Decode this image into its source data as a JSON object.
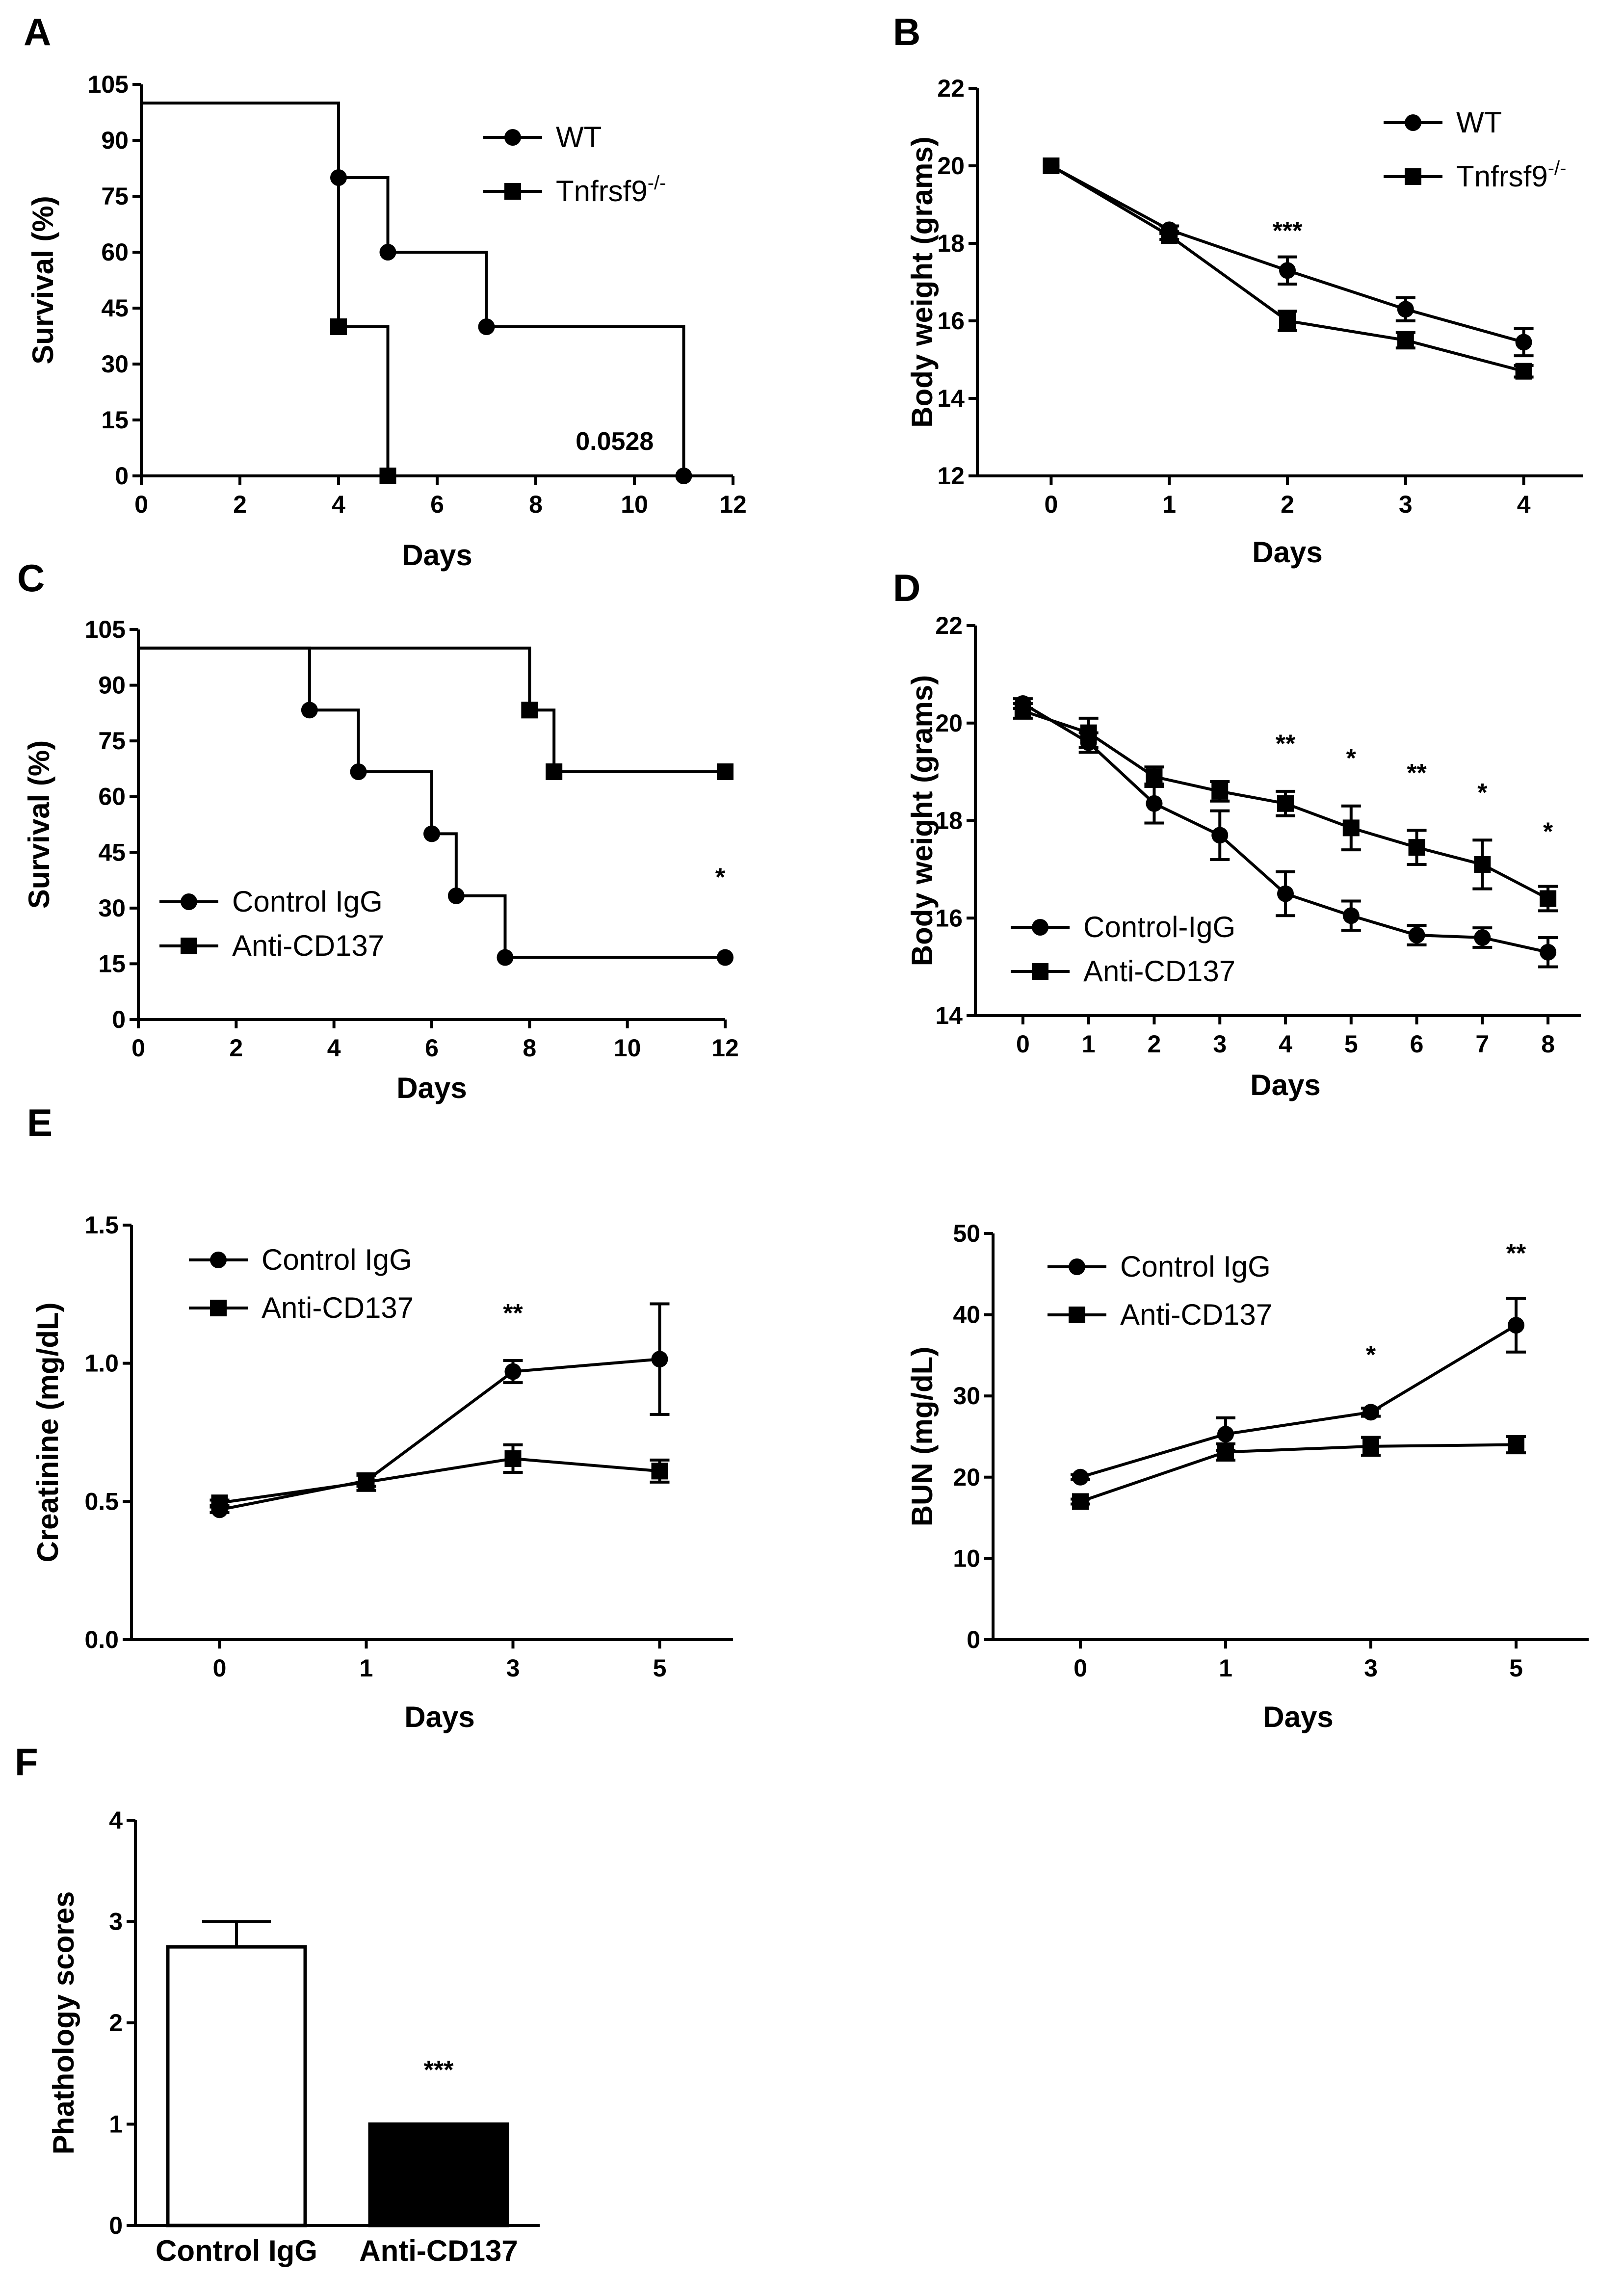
{
  "chart_data": [
    {
      "panel": "A",
      "type": "line",
      "subtype": "survival-step",
      "title": "",
      "xlabel": "Days",
      "ylabel": "Survival (%)",
      "xlim": [
        0,
        12
      ],
      "ylim": [
        0,
        105
      ],
      "xticks": [
        0,
        2,
        4,
        6,
        8,
        10,
        12
      ],
      "yticks": [
        0,
        15,
        30,
        45,
        60,
        75,
        90,
        105
      ],
      "grid": false,
      "legend_position": "top-right",
      "annotations": [
        {
          "text": "0.0528",
          "x": 9.6,
          "y": 7
        }
      ],
      "series": [
        {
          "name": "WT",
          "superscript": "",
          "marker": "circle",
          "x": [
            0,
            4,
            5,
            7,
            11
          ],
          "y": [
            100,
            80,
            60,
            40,
            0
          ],
          "marked_x": [
            4,
            5,
            7,
            11
          ],
          "marked_y": [
            80,
            60,
            40,
            0
          ]
        },
        {
          "name": "Tnfrsf9",
          "superscript": "-/-",
          "marker": "square",
          "x": [
            0,
            4,
            5
          ],
          "y": [
            100,
            40,
            0
          ],
          "marked_x": [
            4,
            5
          ],
          "marked_y": [
            40,
            0
          ]
        }
      ]
    },
    {
      "panel": "B",
      "type": "line",
      "title": "",
      "xlabel": "Days",
      "ylabel": "Body weight (grams)",
      "xlim": [
        -0.5,
        4.5
      ],
      "ylim": [
        12,
        22
      ],
      "xticks": [
        0,
        1,
        2,
        3,
        4
      ],
      "yticks": [
        12,
        14,
        16,
        18,
        20,
        22
      ],
      "grid": false,
      "legend_position": "top-right",
      "annotations": [
        {
          "text": "***",
          "x": 2,
          "y": 18.1
        }
      ],
      "series": [
        {
          "name": "WT",
          "superscript": "",
          "marker": "circle",
          "x": [
            0,
            1,
            2,
            3,
            4
          ],
          "y": [
            20,
            18.35,
            17.3,
            16.3,
            15.45
          ],
          "err": [
            0,
            0.1,
            0.35,
            0.3,
            0.35
          ]
        },
        {
          "name": "Tnfrsf9",
          "superscript": "-/-",
          "marker": "square",
          "x": [
            0,
            1,
            2,
            3,
            4
          ],
          "y": [
            20,
            18.2,
            16,
            15.5,
            14.7
          ],
          "err": [
            0,
            0.1,
            0.25,
            0.2,
            0.15
          ]
        }
      ]
    },
    {
      "panel": "C",
      "type": "line",
      "subtype": "survival-step",
      "title": "",
      "xlabel": "Days",
      "ylabel": "Survival (%)",
      "xlim": [
        0,
        12
      ],
      "ylim": [
        0,
        105
      ],
      "xticks": [
        0,
        2,
        4,
        6,
        8,
        10,
        12
      ],
      "yticks": [
        0,
        15,
        30,
        45,
        60,
        75,
        90,
        105
      ],
      "grid": false,
      "legend_position": "bottom-left",
      "annotations": [
        {
          "text": "*",
          "x": 11.9,
          "y": 36
        }
      ],
      "series": [
        {
          "name": "Control IgG",
          "superscript": "",
          "marker": "circle",
          "x": [
            0,
            3.5,
            4.5,
            6,
            6.5,
            7.5,
            12
          ],
          "y": [
            100,
            83.3,
            66.7,
            50,
            33.3,
            16.7,
            16.7
          ],
          "marked_x": [
            3.5,
            4.5,
            6,
            6.5,
            7.5,
            12
          ],
          "marked_y": [
            83.3,
            66.7,
            50,
            33.3,
            16.7,
            16.7
          ]
        },
        {
          "name": "Anti-CD137",
          "superscript": "",
          "marker": "square",
          "x": [
            0,
            8,
            8.5,
            12
          ],
          "y": [
            100,
            83.3,
            66.7,
            66.7
          ],
          "marked_x": [
            8,
            8.5,
            12
          ],
          "marked_y": [
            83.3,
            66.7,
            66.7
          ]
        }
      ]
    },
    {
      "panel": "D",
      "type": "line",
      "title": "",
      "xlabel": "Days",
      "ylabel": "Body weight (grams)",
      "xlim": [
        -0.5,
        8.5
      ],
      "ylim": [
        14,
        22
      ],
      "xticks": [
        0,
        1,
        2,
        3,
        4,
        5,
        6,
        7,
        8
      ],
      "yticks": [
        14,
        16,
        18,
        20,
        22
      ],
      "grid": false,
      "legend_position": "bottom-left",
      "annotations": [
        {
          "text": "**",
          "x": 4,
          "y": 19.4
        },
        {
          "text": "*",
          "x": 5,
          "y": 19.1
        },
        {
          "text": "**",
          "x": 6,
          "y": 18.8
        },
        {
          "text": "*",
          "x": 7,
          "y": 18.4
        },
        {
          "text": "*",
          "x": 8,
          "y": 17.6
        }
      ],
      "series": [
        {
          "name": "Control-IgG",
          "superscript": "",
          "marker": "circle",
          "x": [
            0,
            1,
            2,
            3,
            4,
            5,
            6,
            7,
            8
          ],
          "y": [
            20.4,
            19.6,
            18.35,
            17.7,
            16.5,
            16.05,
            15.65,
            15.6,
            15.3
          ],
          "err": [
            0.1,
            0.2,
            0.4,
            0.5,
            0.45,
            0.3,
            0.2,
            0.2,
            0.3
          ]
        },
        {
          "name": "Anti-CD137",
          "superscript": "",
          "marker": "square",
          "x": [
            0,
            1,
            2,
            3,
            4,
            5,
            6,
            7,
            8
          ],
          "y": [
            20.25,
            19.8,
            18.9,
            18.6,
            18.35,
            17.85,
            17.45,
            17.1,
            16.4
          ],
          "err": [
            0.15,
            0.3,
            0.2,
            0.2,
            0.25,
            0.45,
            0.35,
            0.5,
            0.25
          ]
        }
      ]
    },
    {
      "panel": "E",
      "type": "line",
      "title": "",
      "xlabel": "Days",
      "ylabel": "Creatinine (mg/dL)",
      "categories": [
        "0",
        "1",
        "3",
        "5"
      ],
      "xlim": [
        -0.5,
        3.5
      ],
      "ylim": [
        0,
        1.5
      ],
      "yticks": [
        0.0,
        0.5,
        1.0,
        1.5
      ],
      "yticklabels": [
        "0.0",
        "0.5",
        "1.0",
        "1.5"
      ],
      "grid": false,
      "legend_position": "top-left",
      "annotations": [
        {
          "text": "**",
          "x": 2,
          "y": 1.15
        }
      ],
      "series": [
        {
          "name": "Control IgG",
          "superscript": "",
          "marker": "circle",
          "values": [
            0.47,
            0.575,
            0.97,
            1.015
          ],
          "err": [
            0.01,
            0.02,
            0.04,
            0.2
          ]
        },
        {
          "name": "Anti-CD137",
          "superscript": "",
          "marker": "square",
          "values": [
            0.495,
            0.57,
            0.655,
            0.61
          ],
          "err": [
            0.01,
            0.03,
            0.05,
            0.04
          ]
        }
      ]
    },
    {
      "panel": "E-right",
      "type": "line",
      "title": "",
      "xlabel": "Days",
      "ylabel": "BUN (mg/dL)",
      "categories": [
        "0",
        "1",
        "3",
        "5"
      ],
      "xlim": [
        -0.5,
        3.5
      ],
      "ylim": [
        0,
        50
      ],
      "yticks": [
        0,
        10,
        20,
        30,
        40,
        50
      ],
      "grid": false,
      "legend_position": "top-left",
      "annotations": [
        {
          "text": "*",
          "x": 2,
          "y": 34
        },
        {
          "text": "**",
          "x": 3,
          "y": 46.5
        }
      ],
      "series": [
        {
          "name": "Control IgG",
          "superscript": "",
          "marker": "circle",
          "values": [
            20,
            25.3,
            28,
            38.7
          ],
          "err": [
            0.3,
            2,
            0.5,
            3.3
          ]
        },
        {
          "name": "Anti-CD137",
          "superscript": "",
          "marker": "square",
          "values": [
            17,
            23.1,
            23.8,
            24
          ],
          "err": [
            0.3,
            1,
            1.1,
            1
          ]
        }
      ]
    },
    {
      "panel": "F",
      "type": "bar",
      "title": "",
      "xlabel": "",
      "ylabel": "Phathology scores",
      "categories": [
        "Control IgG",
        "Anti-CD137"
      ],
      "values": [
        2.75,
        1.0
      ],
      "err": [
        0.25,
        0
      ],
      "fills": [
        "#ffffff",
        "#000000"
      ],
      "ylim": [
        0,
        4
      ],
      "yticks": [
        0,
        1,
        2,
        3,
        4
      ],
      "grid": false,
      "annotations": [
        {
          "text": "***",
          "category": 1,
          "y": 1.45
        }
      ]
    }
  ],
  "panel_labels": [
    "A",
    "B",
    "C",
    "D",
    "E",
    "F"
  ]
}
